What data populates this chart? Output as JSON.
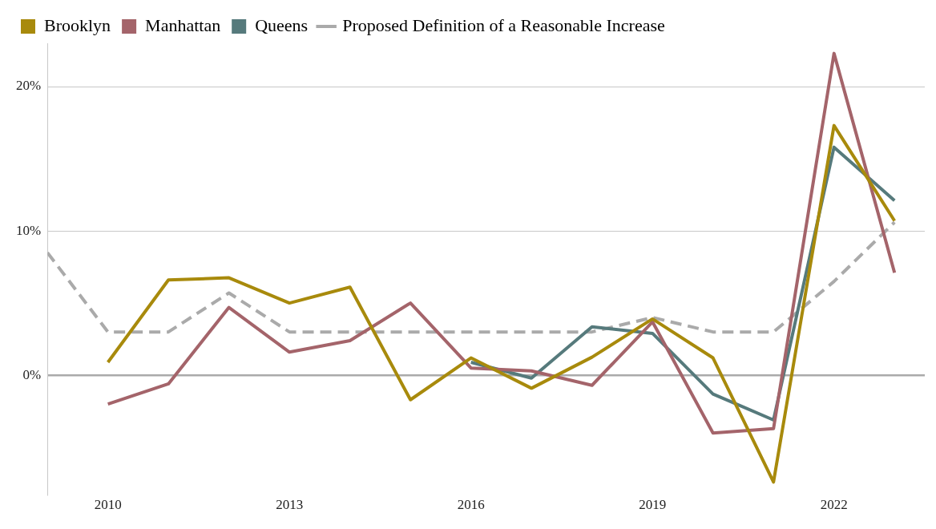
{
  "chart_data": {
    "type": "line",
    "legend": "top left",
    "grid": "y",
    "line_style": "solid",
    "marker": "none",
    "x": [
      2009,
      2010,
      2011,
      2012,
      2013,
      2014,
      2015,
      2016,
      2017,
      2018,
      2019,
      2020,
      2021,
      2022,
      2023
    ],
    "xlim": [
      2009,
      2023.5
    ],
    "xticks": [
      2010,
      2013,
      2016,
      2019,
      2022
    ],
    "ylim": [
      -8.3,
      23
    ],
    "yticks": [
      {
        "value": 0,
        "label": "0%"
      },
      {
        "value": 10,
        "label": "10%"
      },
      {
        "value": 20,
        "label": "20%"
      }
    ],
    "series": [
      {
        "name": "Brooklyn",
        "color": "#a88a0c",
        "values": [
          null,
          0.9,
          6.6,
          6.75,
          5.0,
          6.1,
          -1.7,
          1.2,
          -0.9,
          1.25,
          3.9,
          1.2,
          -7.4,
          17.3,
          10.7
        ]
      },
      {
        "name": "Manhattan",
        "color": "#a4646a",
        "values": [
          null,
          -2.0,
          -0.6,
          4.7,
          1.6,
          2.4,
          5.0,
          0.5,
          0.3,
          -0.7,
          3.7,
          -4.0,
          -3.7,
          22.3,
          7.1
        ]
      },
      {
        "name": "Queens",
        "color": "#567a7c",
        "values": [
          null,
          null,
          null,
          null,
          null,
          null,
          null,
          0.9,
          -0.2,
          3.35,
          2.9,
          -1.3,
          -3.1,
          15.8,
          12.1
        ]
      },
      {
        "name": "Proposed Definition of a Reasonable Increase",
        "color": "#aaaaaa",
        "line_style": "dashed",
        "values": [
          8.5,
          3.0,
          3.0,
          5.7,
          3.0,
          3.0,
          3.0,
          3.0,
          3.0,
          3.0,
          4.0,
          3.0,
          3.0,
          6.5,
          10.6
        ]
      }
    ]
  }
}
